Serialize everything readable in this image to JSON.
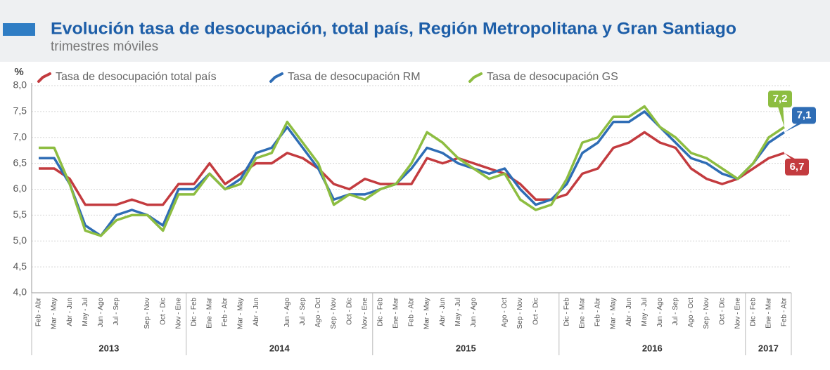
{
  "chart_data": {
    "type": "line",
    "title": "Evolución tasa de desocupación, total país, Región Metropolitana y Gran Santiago",
    "subtitle": "trimestres móviles",
    "y_label": "%",
    "categories": [
      "Feb - Abr",
      "Mar - May",
      "Abr - Jun",
      "May - Jul",
      "Jun - Ago",
      "Jul - Sep",
      null,
      "Sep - Nov",
      "Oct - Dic",
      "Nov - Ene",
      "Dic - Feb",
      "Ene - Mar",
      "Feb - Abr",
      "Mar - May",
      "Abr - Jun",
      null,
      "Jun - Ago",
      "Jul - Sep",
      "Ago - Oct",
      "Sep - Nov",
      "Oct - Dic",
      "Nov - Ene",
      "Dic - Feb",
      "Ene - Mar",
      "Feb - Abr",
      "Mar - May",
      "Abr - Jun",
      "May - Jul",
      "Jun - Ago",
      null,
      "Ago - Oct",
      "Sep - Nov",
      "Oct - Dic",
      null,
      "Dic - Feb",
      "Ene - Mar",
      "Feb - Abr",
      "Mar - May",
      "Abr - Jun",
      "May - Jul",
      "Jun - Ago",
      "Jul - Sep",
      "Ago - Oct",
      "Sep - Nov",
      "Oct - Dic",
      "Nov - Ene",
      "Dic - Feb",
      "Ene - Mar",
      "Feb - Abr"
    ],
    "year_groups": [
      {
        "label": "2013",
        "count": 10
      },
      {
        "label": "2014",
        "count": 12
      },
      {
        "label": "2015",
        "count": 12
      },
      {
        "label": "2016",
        "count": 12
      },
      {
        "label": "2017",
        "count": 3
      }
    ],
    "series": [
      {
        "name": "Tasa de desocupación total país",
        "color": "#c33b3f",
        "values": [
          6.4,
          6.4,
          6.2,
          5.7,
          5.7,
          5.7,
          5.8,
          5.7,
          5.7,
          6.1,
          6.1,
          6.5,
          6.1,
          6.3,
          6.5,
          6.5,
          6.7,
          6.6,
          6.4,
          6.1,
          6.0,
          6.2,
          6.1,
          6.1,
          6.1,
          6.6,
          6.5,
          6.6,
          6.5,
          6.4,
          6.3,
          6.1,
          5.8,
          5.8,
          5.9,
          6.3,
          6.4,
          6.8,
          6.9,
          7.1,
          6.9,
          6.8,
          6.4,
          6.2,
          6.1,
          6.2,
          6.4,
          6.6,
          6.7
        ],
        "value_labels": [
          null,
          null,
          null,
          null,
          null,
          null,
          null,
          null,
          null,
          null,
          null,
          null,
          null,
          null,
          null,
          null,
          null,
          null,
          null,
          null,
          null,
          null,
          null,
          null,
          null,
          null,
          null,
          null,
          null,
          null,
          null,
          null,
          null,
          null,
          null,
          null,
          null,
          null,
          null,
          null,
          null,
          null,
          null,
          null,
          null,
          null,
          null,
          null,
          "6,7"
        ]
      },
      {
        "name": "Tasa de desocupación RM",
        "color": "#2f6db5",
        "values": [
          6.6,
          6.6,
          6.1,
          5.3,
          5.1,
          5.5,
          5.6,
          5.5,
          5.3,
          6.0,
          6.0,
          6.3,
          6.0,
          6.2,
          6.7,
          6.8,
          7.2,
          6.8,
          6.4,
          5.8,
          5.9,
          5.9,
          6.0,
          6.1,
          6.4,
          6.8,
          6.7,
          6.5,
          6.4,
          6.3,
          6.4,
          6.0,
          5.7,
          5.8,
          6.1,
          6.7,
          6.9,
          7.3,
          7.3,
          7.5,
          7.2,
          6.9,
          6.6,
          6.5,
          6.3,
          6.2,
          6.5,
          6.9,
          7.1
        ],
        "value_labels": [
          null,
          null,
          null,
          null,
          null,
          null,
          null,
          null,
          null,
          null,
          null,
          null,
          null,
          null,
          null,
          null,
          null,
          null,
          null,
          null,
          null,
          null,
          null,
          null,
          null,
          null,
          null,
          null,
          null,
          null,
          null,
          null,
          null,
          null,
          null,
          null,
          null,
          null,
          null,
          null,
          null,
          null,
          null,
          null,
          null,
          null,
          null,
          null,
          "7,1"
        ]
      },
      {
        "name": "Tasa de desocupación GS",
        "color": "#8dbd41",
        "values": [
          6.8,
          6.8,
          6.1,
          5.2,
          5.1,
          5.4,
          5.5,
          5.5,
          5.2,
          5.9,
          5.9,
          6.3,
          6.0,
          6.1,
          6.6,
          6.7,
          7.3,
          6.9,
          6.5,
          5.7,
          5.9,
          5.8,
          6.0,
          6.1,
          6.5,
          7.1,
          6.9,
          6.6,
          6.4,
          6.2,
          6.3,
          5.8,
          5.6,
          5.7,
          6.2,
          6.9,
          7.0,
          7.4,
          7.4,
          7.6,
          7.2,
          7.0,
          6.7,
          6.6,
          6.4,
          6.2,
          6.5,
          7.0,
          7.2
        ],
        "value_labels": [
          null,
          null,
          null,
          null,
          null,
          null,
          null,
          null,
          null,
          null,
          null,
          null,
          null,
          null,
          null,
          null,
          null,
          null,
          null,
          null,
          null,
          null,
          null,
          null,
          null,
          null,
          null,
          null,
          null,
          null,
          null,
          null,
          null,
          null,
          null,
          null,
          null,
          null,
          null,
          null,
          null,
          null,
          null,
          null,
          null,
          null,
          null,
          null,
          "7,2"
        ]
      }
    ],
    "ylim": [
      4.0,
      8.0
    ],
    "yticks": [
      {
        "value": 4.0,
        "label": "4,0"
      },
      {
        "value": 4.5,
        "label": "4,5"
      },
      {
        "value": 5.0,
        "label": "5,0"
      },
      {
        "value": 5.5,
        "label": "5,5"
      },
      {
        "value": 6.0,
        "label": "6,0"
      },
      {
        "value": 6.5,
        "label": "6,5"
      },
      {
        "value": 7.0,
        "label": "7,0"
      },
      {
        "value": 7.5,
        "label": "7,5"
      },
      {
        "value": 8.0,
        "label": "8,0"
      }
    ],
    "grid": true
  }
}
